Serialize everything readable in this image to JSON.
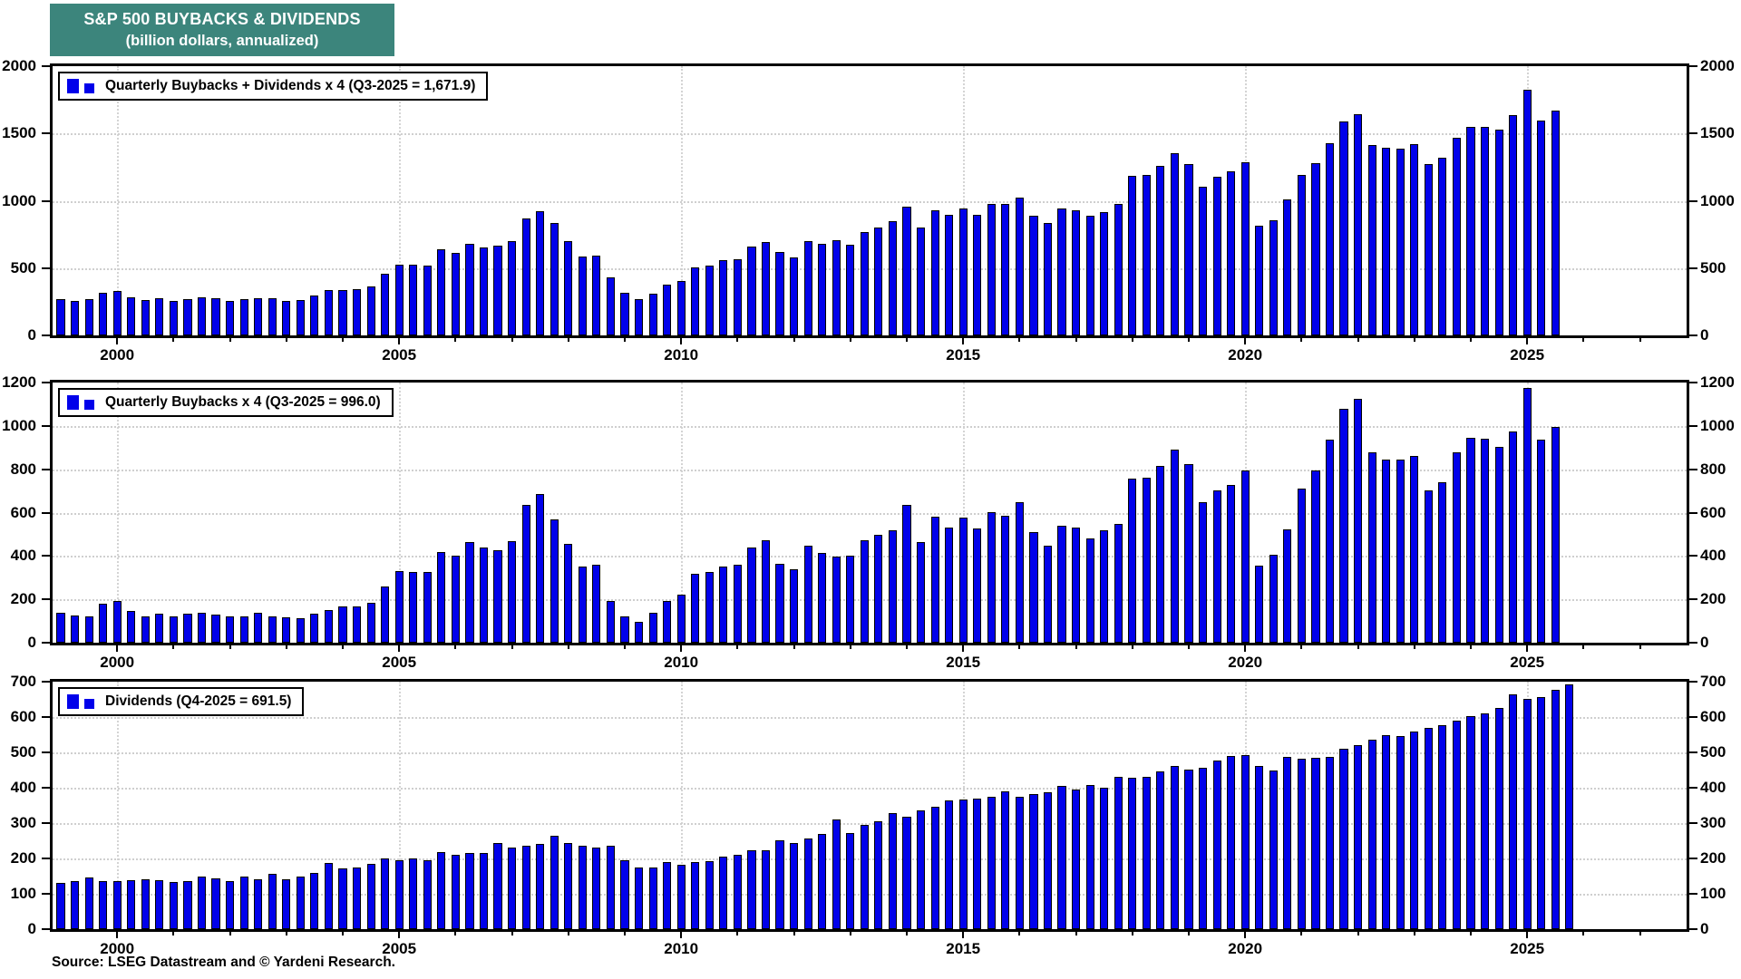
{
  "title": {
    "line1": "S&P 500 BUYBACKS & DIVIDENDS",
    "line2": "(billion dollars, annualized)"
  },
  "source": "Source: LSEG Datastream and © Yardeni Research.",
  "colors": {
    "bar_fill": "#0101ea",
    "bar_border": "#000000",
    "title_bg": "#3c857c",
    "grid": "#cfcfcf",
    "frame": "#000000"
  },
  "x_axis": {
    "start_quarter": "1999-Q1",
    "frequency": "quarterly",
    "labeled_years": [
      2000,
      2005,
      2010,
      2015,
      2020,
      2025
    ],
    "minor_tick_every_year": true
  },
  "chart_data": [
    {
      "type": "bar",
      "panel": "top",
      "legend": "Quarterly Buybacks + Dividends x 4 (Q3-2025 = 1,671.9)",
      "ylabel": "",
      "ylim": [
        0,
        2000
      ],
      "ytick_step": 500,
      "grid": "dotted",
      "legend_position": "top-left",
      "x_start": "1999-Q1",
      "values": [
        266,
        259,
        267,
        315,
        329,
        286,
        263,
        274,
        256,
        272,
        285,
        274,
        259,
        270,
        278,
        279,
        256,
        261,
        294,
        337,
        339,
        343,
        367,
        459,
        525,
        524,
        519,
        637,
        610,
        680,
        655,
        668,
        701,
        871,
        925,
        834,
        699,
        587,
        591,
        429,
        319,
        272,
        313,
        380,
        405,
        507,
        519,
        558,
        568,
        659,
        696,
        617,
        580,
        703,
        683,
        705,
        672,
        768,
        800,
        847,
        955,
        801,
        926,
        894,
        942,
        896,
        977,
        974,
        1021,
        891,
        835,
        946,
        927,
        888,
        918,
        978,
        1184,
        1192,
        1261,
        1354,
        1275,
        1105,
        1180,
        1216,
        1288,
        817,
        857,
        1008,
        1194,
        1280,
        1426,
        1590,
        1644,
        1413,
        1391,
        1390,
        1422,
        1271,
        1320,
        1466,
        1550,
        1550,
        1529,
        1636,
        1826,
        1595,
        1671.9
      ]
    },
    {
      "type": "bar",
      "panel": "middle",
      "legend": "Quarterly Buybacks x 4 (Q3-2025 = 996.0)",
      "ylabel": "",
      "ylim": [
        0,
        1200
      ],
      "ytick_step": 200,
      "grid": "dotted",
      "legend_position": "top-left",
      "x_start": "1999-Q1",
      "values": [
        136,
        124,
        122,
        180,
        192,
        147,
        122,
        135,
        122,
        135,
        137,
        130,
        122,
        122,
        137,
        122,
        115,
        113,
        135,
        150,
        168,
        168,
        183,
        260,
        330,
        325,
        325,
        420,
        400,
        465,
        440,
        425,
        470,
        635,
        685,
        570,
        456,
        352,
        359,
        192,
        123,
        97,
        139,
        191,
        223,
        318,
        326,
        352,
        359,
        437,
        474,
        365,
        337,
        447,
        415,
        396,
        400,
        472,
        496,
        518,
        637,
        465,
        581,
        530,
        576,
        526,
        602,
        584,
        646,
        510,
        449,
        541,
        532,
        480,
        517,
        548,
        756,
        762,
        815,
        892,
        823,
        648,
        704,
        726,
        795,
        355,
        407,
        522,
        712,
        795,
        938,
        1080,
        1124,
        878,
        843,
        845,
        862,
        701,
        742,
        876,
        947,
        940,
        904,
        973,
        1174,
        938,
        996.0
      ]
    },
    {
      "type": "bar",
      "panel": "bottom",
      "legend": "Dividends (Q4-2025 = 691.5)",
      "ylabel": "",
      "ylim": [
        0,
        700
      ],
      "ytick_step": 100,
      "grid": "dotted",
      "legend_position": "top-left",
      "x_start": "1999-Q1",
      "values": [
        130,
        135,
        145,
        135,
        137,
        139,
        141,
        139,
        134,
        137,
        148,
        144,
        137,
        148,
        141,
        157,
        141,
        148,
        159,
        187,
        171,
        175,
        184,
        199,
        195,
        199,
        194,
        217,
        210,
        215,
        215,
        243,
        231,
        236,
        240,
        264,
        243,
        235,
        232,
        237,
        196,
        175,
        174,
        189,
        182,
        189,
        193,
        206,
        209,
        222,
        222,
        252,
        243,
        256,
        268,
        309,
        272,
        296,
        304,
        329,
        318,
        336,
        345,
        364,
        366,
        370,
        375,
        390,
        375,
        381,
        386,
        405,
        395,
        408,
        401,
        430,
        428,
        430,
        446,
        462,
        452,
        457,
        476,
        490,
        493,
        462,
        450,
        486,
        482,
        485,
        488,
        510,
        520,
        535,
        548,
        545,
        560,
        570,
        578,
        590,
        603,
        610,
        625,
        663,
        652,
        657,
        678,
        691.5
      ]
    }
  ]
}
